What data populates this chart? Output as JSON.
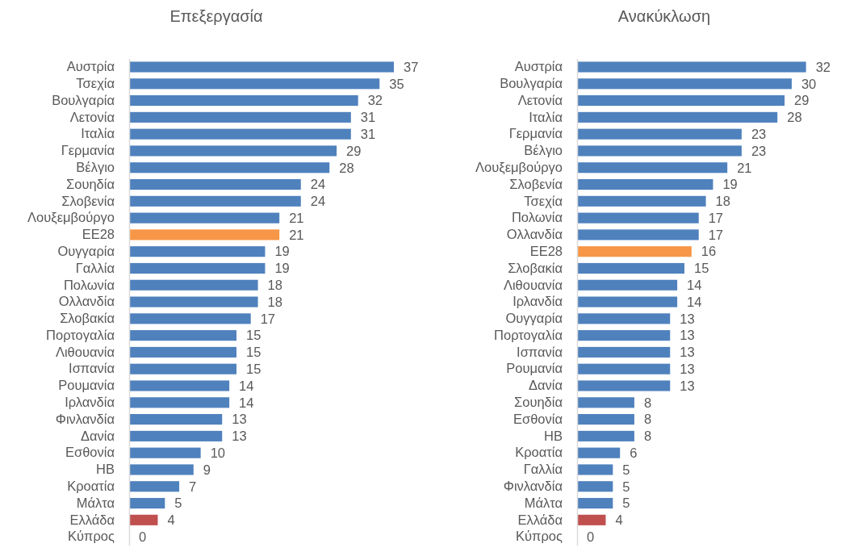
{
  "chart_data": [
    {
      "type": "bar",
      "orientation": "horizontal",
      "title": "Επεξεργασία",
      "data_labels": true,
      "tick_labels": "y",
      "categories": [
        "Αυστρία",
        "Τσεχία",
        "Βουλγαρία",
        "Λετονία",
        "Ιταλία",
        "Γερμανία",
        "Βέλγιο",
        "Σουηδία",
        "Σλοβενία",
        "Λουξεμβούργο",
        "ΕΕ28",
        "Ουγγαρία",
        "Γαλλία",
        "Πολωνία",
        "Ολλανδία",
        "Σλοβακία",
        "Πορτογαλία",
        "Λιθουανία",
        "Ισπανία",
        "Ρουμανία",
        "Ιρλανδία",
        "Φινλανδία",
        "Δανία",
        "Εσθονία",
        "ΗΒ",
        "Κροατία",
        "Μάλτα",
        "Ελλάδα",
        "Κύπρος"
      ],
      "values": [
        37,
        35,
        32,
        31,
        31,
        29,
        28,
        24,
        24,
        21,
        21,
        19,
        19,
        18,
        18,
        17,
        15,
        15,
        15,
        14,
        14,
        13,
        13,
        10,
        9,
        7,
        5,
        4,
        0
      ],
      "colors": [
        "#4f81bd",
        "#4f81bd",
        "#4f81bd",
        "#4f81bd",
        "#4f81bd",
        "#4f81bd",
        "#4f81bd",
        "#4f81bd",
        "#4f81bd",
        "#4f81bd",
        "#f79646",
        "#4f81bd",
        "#4f81bd",
        "#4f81bd",
        "#4f81bd",
        "#4f81bd",
        "#4f81bd",
        "#4f81bd",
        "#4f81bd",
        "#4f81bd",
        "#4f81bd",
        "#4f81bd",
        "#4f81bd",
        "#4f81bd",
        "#4f81bd",
        "#4f81bd",
        "#4f81bd",
        "#c0504d",
        "#4f81bd"
      ]
    },
    {
      "type": "bar",
      "orientation": "horizontal",
      "title": "Ανακύκλωση",
      "data_labels": true,
      "tick_labels": "y",
      "categories": [
        "Αυστρία",
        "Βουλγαρία",
        "Λετονία",
        "Ιταλία",
        "Γερμανία",
        "Βέλγιο",
        "Λουξεμβούργο",
        "Σλοβενία",
        "Τσεχία",
        "Πολωνία",
        "Ολλανδία",
        "ΕΕ28",
        "Σλοβακία",
        "Λιθουανία",
        "Ιρλανδία",
        "Ουγγαρία",
        "Πορτογαλία",
        "Ισπανία",
        "Ρουμανία",
        "Δανία",
        "Σουηδία",
        "Εσθονία",
        "ΗΒ",
        "Κροατία",
        "Γαλλία",
        "Φινλανδία",
        "Μάλτα",
        "Ελλάδα",
        "Κύπρος"
      ],
      "values": [
        32,
        30,
        29,
        28,
        23,
        23,
        21,
        19,
        18,
        17,
        17,
        16,
        15,
        14,
        14,
        13,
        13,
        13,
        13,
        13,
        8,
        8,
        8,
        6,
        5,
        5,
        5,
        4,
        0
      ],
      "colors": [
        "#4f81bd",
        "#4f81bd",
        "#4f81bd",
        "#4f81bd",
        "#4f81bd",
        "#4f81bd",
        "#4f81bd",
        "#4f81bd",
        "#4f81bd",
        "#4f81bd",
        "#4f81bd",
        "#f79646",
        "#4f81bd",
        "#4f81bd",
        "#4f81bd",
        "#4f81bd",
        "#4f81bd",
        "#4f81bd",
        "#4f81bd",
        "#4f81bd",
        "#4f81bd",
        "#4f81bd",
        "#4f81bd",
        "#4f81bd",
        "#4f81bd",
        "#4f81bd",
        "#4f81bd",
        "#c0504d",
        "#4f81bd"
      ]
    }
  ]
}
